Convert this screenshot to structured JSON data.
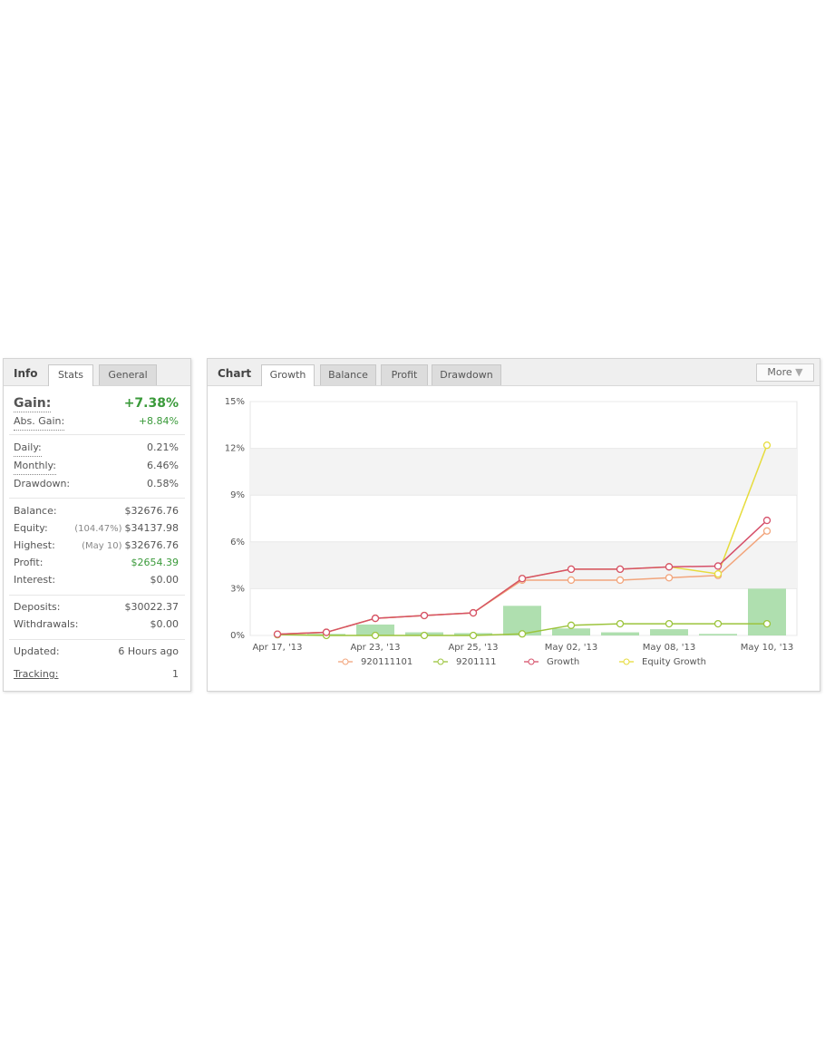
{
  "info": {
    "title": "Info",
    "tabs": [
      "Stats",
      "General"
    ],
    "gain": {
      "label": "Gain:",
      "value": "+7.38%"
    },
    "abs_gain": {
      "label": "Abs. Gain:",
      "value": "+8.84%"
    },
    "daily": {
      "label": "Daily:",
      "value": "0.21%"
    },
    "monthly": {
      "label": "Monthly:",
      "value": "6.46%"
    },
    "drawdown": {
      "label": "Drawdown:",
      "value": "0.58%"
    },
    "balance": {
      "label": "Balance:",
      "value": "$32676.76"
    },
    "equity": {
      "label": "Equity:",
      "note": "(104.47%)",
      "value": "$34137.98"
    },
    "highest": {
      "label": "Highest:",
      "note": "(May 10)",
      "value": "$32676.76"
    },
    "profit": {
      "label": "Profit:",
      "value": "$2654.39"
    },
    "interest": {
      "label": "Interest:",
      "value": "$0.00"
    },
    "deposits": {
      "label": "Deposits:",
      "value": "$30022.37"
    },
    "withdrawals": {
      "label": "Withdrawals:",
      "value": "$0.00"
    },
    "updated": {
      "label": "Updated:",
      "value": "6 Hours ago"
    },
    "tracking": {
      "label": "Tracking:",
      "value": "1"
    }
  },
  "chart_panel": {
    "title": "Chart",
    "tabs": [
      "Growth",
      "Balance",
      "Profit",
      "Drawdown"
    ],
    "more": "More"
  },
  "chart_data": {
    "type": "line",
    "categories": [
      "Apr 17, '13",
      null,
      "Apr 23, '13",
      null,
      "Apr 25, '13",
      null,
      "May 02, '13",
      null,
      "May 08, '13",
      null,
      "May 10, '13"
    ],
    "ylim": [
      0,
      15
    ],
    "yticks": [
      {
        "value": 0,
        "label": "0%"
      },
      {
        "value": 3,
        "label": "3%"
      },
      {
        "value": 6,
        "label": "6%"
      },
      {
        "value": 9,
        "label": "9%"
      },
      {
        "value": 12,
        "label": "12%"
      },
      {
        "value": 15,
        "label": "15%"
      }
    ],
    "bars": {
      "color": "#a6dca6",
      "values": [
        0,
        0.1,
        0.7,
        0.2,
        0.15,
        1.9,
        0.45,
        0.2,
        0.4,
        0.1,
        3.0
      ]
    },
    "series": [
      {
        "name": "920111101",
        "color": "#f2a57c",
        "values": [
          0.08,
          0.2,
          1.1,
          1.28,
          1.45,
          3.55,
          3.55,
          3.55,
          3.7,
          3.85,
          6.7
        ]
      },
      {
        "name": "9201111",
        "color": "#9cc43c",
        "values": [
          0.05,
          0,
          0,
          0,
          0,
          0.1,
          0.65,
          0.75,
          0.75,
          0.75,
          0.75
        ]
      },
      {
        "name": "Growth",
        "color": "#d6506a",
        "values": [
          0.08,
          0.2,
          1.1,
          1.28,
          1.45,
          3.65,
          4.25,
          4.25,
          4.4,
          4.45,
          7.38
        ]
      },
      {
        "name": "Equity Growth",
        "color": "#e6dc3c",
        "values": [
          0.08,
          0.2,
          1.1,
          1.28,
          1.45,
          3.65,
          4.25,
          4.25,
          4.4,
          3.95,
          12.2
        ]
      }
    ],
    "grid": true
  }
}
